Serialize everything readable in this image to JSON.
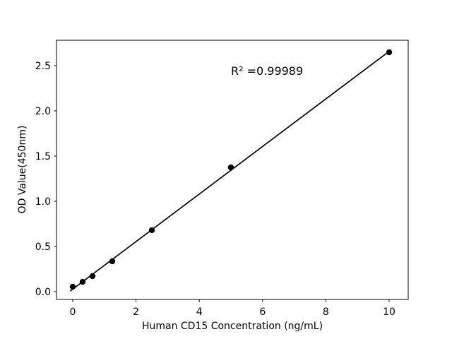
{
  "figure": {
    "background": "#ffffff"
  },
  "chart_data": {
    "type": "scatter",
    "title": "",
    "xlabel": "Human CD15 Concentration (ng/mL)",
    "ylabel": "OD Value(450nm)",
    "x": [
      0,
      0.3125,
      0.625,
      1.25,
      2.5,
      5,
      10
    ],
    "y": [
      0.055,
      0.109,
      0.172,
      0.336,
      0.68,
      1.375,
      2.648
    ],
    "fit_line": {
      "slope": 0.263,
      "intercept": 0.028,
      "x_start": -0.07,
      "x_end": 10.05
    },
    "annotation": {
      "text": "R² =0.99989",
      "x": 5.0,
      "y": 2.4
    },
    "r_squared": 0.99989,
    "xlim": [
      -0.513,
      10.603
    ],
    "ylim": [
      -0.086,
      2.781
    ],
    "xticks": {
      "values": [
        0,
        2,
        4,
        6,
        8,
        10
      ],
      "labels": [
        "0",
        "2",
        "4",
        "6",
        "8",
        "10"
      ]
    },
    "yticks": {
      "values": [
        0,
        0.5,
        1,
        1.5,
        2,
        2.5
      ],
      "labels": [
        "0.0",
        "0.5",
        "1.0",
        "1.5",
        "2.0",
        "2.5"
      ]
    },
    "grid": false,
    "legend_shown": false,
    "colors": {
      "marker": "#000000",
      "line": "#000000",
      "spine": "#000000",
      "text": "#000000",
      "background": "#ffffff"
    }
  }
}
